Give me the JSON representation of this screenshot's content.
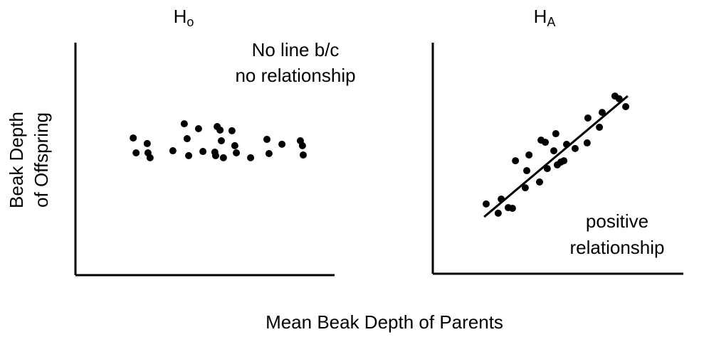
{
  "chart_data": [
    {
      "type": "scatter",
      "title": "H",
      "title_subscript": "o",
      "annotation": [
        "No line b/c",
        "no relationship"
      ],
      "xlim": [
        0,
        100
      ],
      "ylim": [
        0,
        100
      ],
      "color": "#000000",
      "x": [
        22.3,
        27.7,
        23.4,
        28.0,
        28.8,
        37.6,
        42.0,
        43.1,
        43.7,
        47.5,
        49.2,
        53.8,
        54.7,
        54.1,
        55.8,
        56.3,
        57.1,
        60.4,
        61.5,
        62.1,
        67.6,
        73.9,
        74.7,
        79.7,
        86.8,
        87.6,
        87.9
      ],
      "y": [
        59.0,
        56.6,
        52.6,
        52.6,
        50.5,
        53.5,
        65.1,
        58.7,
        51.4,
        63.0,
        53.2,
        52.9,
        63.9,
        51.4,
        62.4,
        57.8,
        50.5,
        62.1,
        55.7,
        52.6,
        50.5,
        58.4,
        52.3,
        56.3,
        57.8,
        55.7,
        51.7
      ]
    },
    {
      "type": "scatter",
      "title": "H",
      "title_subscript": "A",
      "annotation": [
        "positive",
        "relationship"
      ],
      "xlim": [
        0,
        100
      ],
      "ylim": [
        0,
        100
      ],
      "color": "#000000",
      "x": [
        21.3,
        26.1,
        27.3,
        30.1,
        31.8,
        33.0,
        36.9,
        37.5,
        38.4,
        42.6,
        43.2,
        44.9,
        45.7,
        48.3,
        49.1,
        49.7,
        51.1,
        52.3,
        53.4,
        56.8,
        61.6,
        61.9,
        66.5,
        67.6,
        72.7,
        74.4,
        77.0
      ],
      "y": [
        30.2,
        26.2,
        32.3,
        28.6,
        28.3,
        48.9,
        37.2,
        44.6,
        51.4,
        39.7,
        57.8,
        56.9,
        45.5,
        53.2,
        60.6,
        47.1,
        48.3,
        48.9,
        56.0,
        54.2,
        56.6,
        67.4,
        63.4,
        69.8,
        76.9,
        75.7,
        72.3
      ],
      "fit_line": {
        "x": [
          20.5,
          77.8
        ],
        "y": [
          24.6,
          76.9
        ]
      }
    }
  ],
  "shared": {
    "x_label": "Mean Beak Depth of Parents",
    "y_label": [
      "Beak Depth",
      "of Offspring"
    ]
  }
}
